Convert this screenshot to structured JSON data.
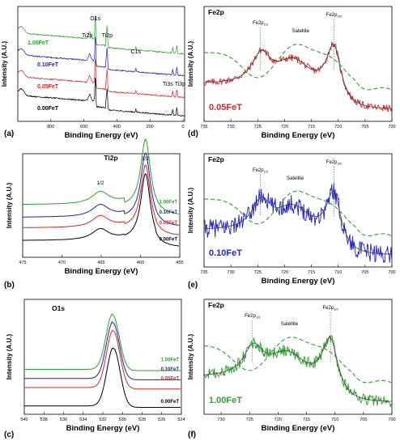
{
  "figure": {
    "panel_letters": [
      "(a)",
      "(b)",
      "(c)",
      "(d)",
      "(e)",
      "(f)"
    ]
  },
  "chart_data": [
    {
      "id": "a",
      "type": "line",
      "xlabel": "Binding Energy (eV)",
      "ylabel": "Intensity (A.U.)",
      "xlim": [
        1000,
        -10
      ],
      "xticks": [
        800,
        600,
        400,
        200,
        0
      ],
      "peak_labels": [
        {
          "text": "O1s",
          "x": 531,
          "level": 3
        },
        {
          "text": "Ti2p",
          "x": 580,
          "level": 2
        },
        {
          "text": "Ti2p",
          "x": 459,
          "level": 2
        },
        {
          "text": "C1s",
          "x": 285,
          "level": 1
        },
        {
          "text": "Ti3s",
          "x": 62,
          "level": 0
        },
        {
          "text": "Ti3p",
          "x": 37,
          "level": 0
        }
      ],
      "series": [
        {
          "name": "1.00FeT",
          "color": "#2ca02c"
        },
        {
          "name": "0.10FeT",
          "color": "#1f1fb4"
        },
        {
          "name": "0.05FeT",
          "color": "#d62728"
        },
        {
          "name": "0.00FeT",
          "color": "#000000"
        }
      ]
    },
    {
      "id": "b",
      "type": "line",
      "title": "Ti2p",
      "xlabel": "Binding Energy (eV)",
      "ylabel": "Intensity (A.U.)",
      "xlim": [
        475,
        455
      ],
      "xticks": [
        475,
        470,
        465,
        460,
        455
      ],
      "xtick_labels": [
        "475",
        "470",
        "465",
        "460",
        "455"
      ],
      "peak_labels": [
        {
          "text": "1/2",
          "x": 465.1
        },
        {
          "text": "3/2",
          "x": 459.4
        }
      ],
      "series": [
        {
          "name": "1.00FeT",
          "color": "#2ca02c"
        },
        {
          "name": "0.10FeT",
          "color": "#1f1fb4"
        },
        {
          "name": "0.05FeT",
          "color": "#d62728"
        },
        {
          "name": "0.00FeT",
          "color": "#000000"
        }
      ]
    },
    {
      "id": "c",
      "type": "line",
      "title": "O1s",
      "xlabel": "Binding Energy (eV)",
      "ylabel": "Intensity (A.U.)",
      "xlim": [
        540,
        524
      ],
      "xticks": [
        540,
        538,
        536,
        534,
        532,
        530,
        528,
        526,
        524
      ],
      "series": [
        {
          "name": "1.00FeT",
          "color": "#2ca02c"
        },
        {
          "name": "0.10FeT",
          "color": "#1f1fb4"
        },
        {
          "name": "0.05FeT",
          "color": "#d62728"
        },
        {
          "name": "0.00FeT",
          "color": "#000000"
        }
      ]
    },
    {
      "id": "d",
      "type": "line",
      "title": "Fe2p",
      "sample": "0.05FeT",
      "color": "#d62728",
      "xlabel": "Binding Energy (eV)",
      "ylabel": "Intensity (A.U.)",
      "xlim": [
        735,
        700
      ],
      "xticks": [
        735,
        730,
        725,
        720,
        715,
        710,
        705,
        700
      ],
      "xtick_labels": [
        "735",
        "730",
        "725",
        "720",
        "715",
        "710",
        "705",
        "700"
      ],
      "annotations": [
        {
          "main": "Fe2p",
          "sub": "1/2",
          "x": 724.5,
          "kind": "peak"
        },
        {
          "main": "Satellite",
          "sub": "",
          "x": 717,
          "kind": "sat"
        },
        {
          "main": "Fe2p",
          "sub": "3/2",
          "x": 710.8,
          "kind": "peak"
        }
      ]
    },
    {
      "id": "e",
      "type": "line",
      "title": "Fe2p",
      "sample": "0.10FeT",
      "color": "#1f1fd0",
      "xlabel": "Binding Energy (eV)",
      "ylabel": "Intensity (A.U.)",
      "xlim": [
        735,
        700
      ],
      "xticks": [
        735,
        730,
        725,
        720,
        715,
        710,
        705,
        700
      ],
      "xtick_labels": [
        "735",
        "730",
        "725",
        "720",
        "715",
        "710",
        "705",
        "700"
      ],
      "annotations": [
        {
          "main": "Fe2p",
          "sub": "1/2",
          "x": 724.5,
          "kind": "peak"
        },
        {
          "main": "Satellite",
          "sub": "",
          "x": 718,
          "kind": "sat"
        },
        {
          "main": "Fe2p",
          "sub": "3/2",
          "x": 710.8,
          "kind": "peak"
        }
      ]
    },
    {
      "id": "f",
      "type": "line",
      "title": "Fe2p",
      "sample": "1.00FeT",
      "color": "#2ca02c",
      "xlabel": "Binding Energy (eV)",
      "ylabel": "Intensity (A.U.)",
      "xlim": [
        733,
        700
      ],
      "xticks": [
        730,
        725,
        720,
        715,
        710,
        705,
        700
      ],
      "xtick_labels": [
        "730",
        "725",
        "720",
        "715",
        "710",
        "705",
        "700"
      ],
      "annotations": [
        {
          "main": "Fe2p",
          "sub": "1/2",
          "x": 724.5,
          "kind": "peak"
        },
        {
          "main": "Satellite",
          "sub": "",
          "x": 718,
          "kind": "sat"
        },
        {
          "main": "Fe2p",
          "sub": "3/2",
          "x": 710.8,
          "kind": "peak"
        }
      ]
    }
  ]
}
